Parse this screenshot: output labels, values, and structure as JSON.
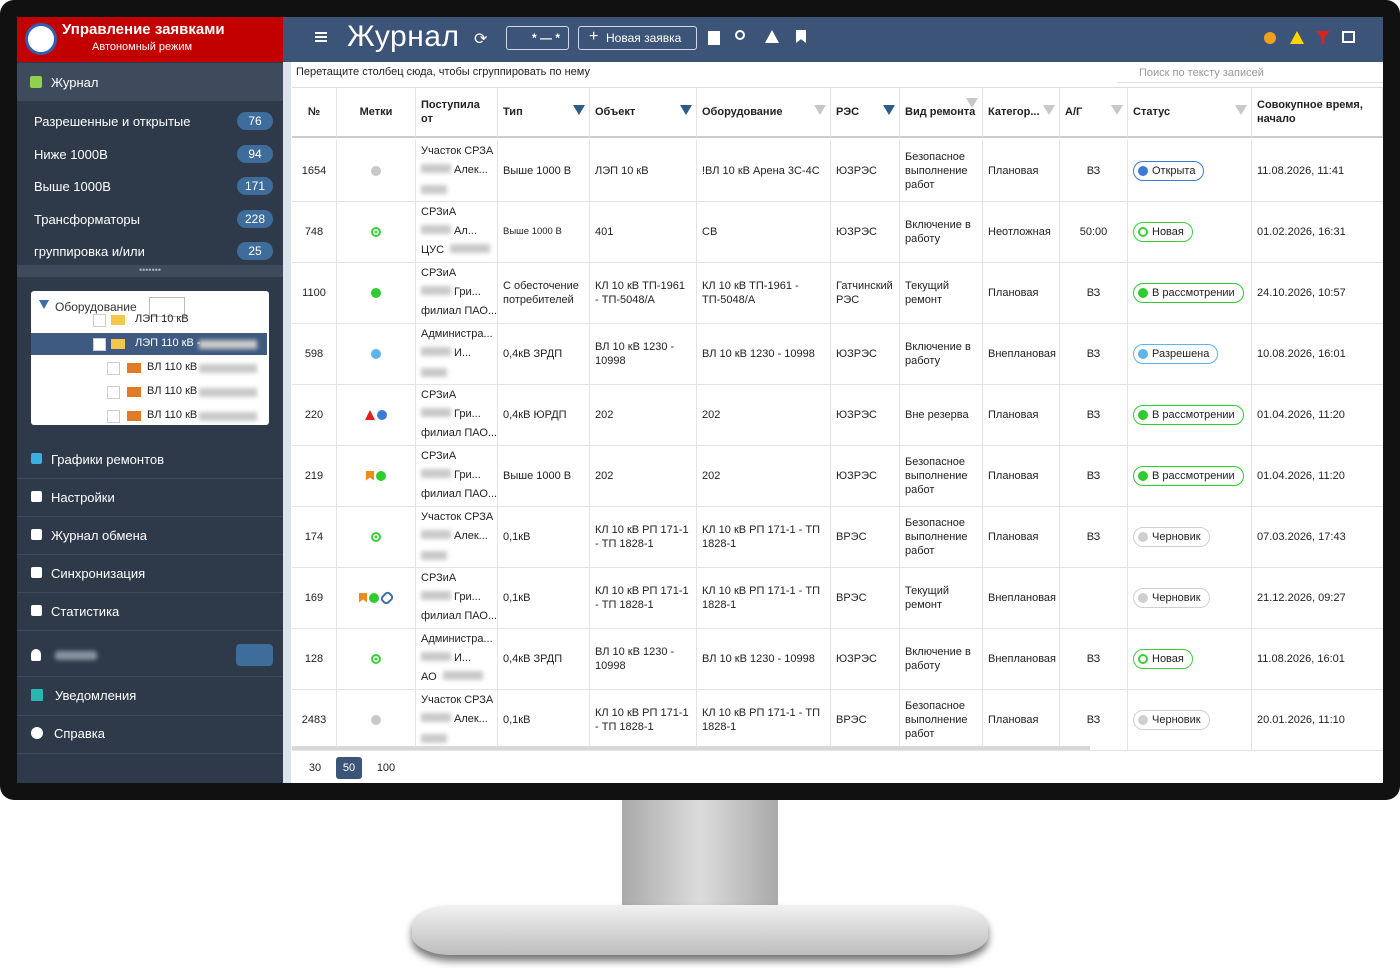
{
  "app": {
    "title": "Управление заявками",
    "subtitle": "Автономный режим"
  },
  "nav": {
    "journal": "Журнал",
    "filters": [
      {
        "label": "Разрешенные и открытые",
        "count": 76
      },
      {
        "label": "Ниже 1000В",
        "count": 94
      },
      {
        "label": "Выше 1000В",
        "count": 171
      },
      {
        "label": "Трансформаторы",
        "count": 228
      },
      {
        "label": "группировка и/или",
        "count": 25
      }
    ],
    "tree": {
      "title": "Оборудование",
      "items": [
        "ЛЭП 10 кВ",
        "ЛЭП 110 кВ -",
        "ВЛ 110 кВ",
        "ВЛ 110 кВ",
        "ВЛ 110 кВ"
      ]
    },
    "items": [
      "Графики ремонтов",
      "Настройки",
      "Журнал обмена",
      "Синхронизация",
      "Статистика"
    ],
    "bottom": [
      "Уведомления",
      "Справка"
    ]
  },
  "toolbar": {
    "title": "Журнал",
    "date_filter": "* — *",
    "new_button": "Новая заявка"
  },
  "group_hint": "Перетащите столбец сюда, чтобы сгруппировать по нему",
  "search_placeholder": "Поиск по тексту записей",
  "table": {
    "headers": [
      "№",
      "Метки",
      "Поступила от",
      "Тип",
      "Объект",
      "Оборудование",
      "РЭС",
      "Вид ремонта",
      "Категор...",
      "А/Г",
      "Статус",
      "Совокупное время, начало"
    ],
    "rows": [
      {
        "id": "1654",
        "marks": [
          {
            "shape": "dot",
            "color": "#c8c8c8"
          }
        ],
        "org": "Участок СРЗА",
        "person": "Алек...",
        "type": "Выше 1000 В",
        "object": "ЛЭП 10 кВ",
        "equipment": "!ВЛ 10 кВ Арена 3С-4С",
        "res": "ЮЗРЭС",
        "work": "Безопасное выполнение работ",
        "category": "Плановая",
        "ag": "ВЗ",
        "status": "Открыта",
        "status_color": "#3a7bd5",
        "status_icon": "fill",
        "time": "11.08.2026, 11:41"
      },
      {
        "id": "748",
        "marks": [
          {
            "shape": "ring",
            "color": "#3ccf3c"
          }
        ],
        "org": "СРЗиА",
        "person": "Ал...",
        "branch": "ЦУС",
        "type": "Выше 1000 В",
        "object": "401",
        "equipment": "СВ",
        "res": "ЮЗРЭС",
        "work": "Включение в работу",
        "category": "Неотложная",
        "ag": "50:00",
        "status": "Новая",
        "status_color": "#3ccf3c",
        "status_icon": "ring",
        "time": "01.02.2026, 16:31"
      },
      {
        "id": "1100",
        "marks": [
          {
            "shape": "dot",
            "color": "#2ecc2e"
          }
        ],
        "org": "СРЗиА",
        "person": "Гри...",
        "branch": "филиал ПАО...",
        "type": "С обесточение потребителей",
        "object": "КЛ 10 кВ ТП-1961 - ТП-5048/А",
        "equipment": "КЛ 10 кВ ТП-1961 - ТП-5048/А",
        "res": "Гатчинский РЭС",
        "work": "Текущий ремонт",
        "category": "Плановая",
        "ag": "ВЗ",
        "status": "В рассмотрении",
        "status_color": "#2ecc2e",
        "status_icon": "fill",
        "time": "24.10.2026, 10:57"
      },
      {
        "id": "598",
        "marks": [
          {
            "shape": "dot",
            "color": "#5bb5ea"
          }
        ],
        "org": "Администра...",
        "person": "И...",
        "type": "0,4кВ ЗРДП",
        "object": "ВЛ 10 кВ 1230 - 10998",
        "equipment": "ВЛ 10 кВ 1230 - 10998",
        "res": "ЮЗРЭС",
        "work": "Включение в работу",
        "category": "Внеплановая",
        "ag": "ВЗ",
        "status": "Разрешена",
        "status_color": "#5bb5ea",
        "status_icon": "fill",
        "time": "10.08.2026, 16:01"
      },
      {
        "id": "220",
        "marks": [
          {
            "shape": "triangle",
            "color": "#e02020"
          },
          {
            "shape": "dot",
            "color": "#3a7bd5"
          }
        ],
        "org": "СРЗиА",
        "person": "Гри...",
        "branch": "филиал ПАО...",
        "type": "0,4кВ ЮРДП",
        "object": "202",
        "equipment": "202",
        "res": "ЮЗРЭС",
        "work": "Вне резерва",
        "category": "Плановая",
        "ag": "ВЗ",
        "status": "В рассмотрении",
        "status_color": "#2ecc2e",
        "status_icon": "fill",
        "time": "01.04.2026, 11:20"
      },
      {
        "id": "219",
        "marks": [
          {
            "shape": "flag",
            "color": "#f08a1c"
          },
          {
            "shape": "dot",
            "color": "#2ecc2e"
          }
        ],
        "org": "СРЗиА",
        "person": "Гри...",
        "branch": "филиал ПАО...",
        "type": "Выше 1000 В",
        "object": "202",
        "equipment": "202",
        "res": "ЮЗРЭС",
        "work": "Безопасное выполнение работ",
        "category": "Плановая",
        "ag": "ВЗ",
        "status": "В рассмотрении",
        "status_color": "#2ecc2e",
        "status_icon": "fill",
        "time": "01.04.2026, 11:20"
      },
      {
        "id": "174",
        "marks": [
          {
            "shape": "ring",
            "color": "#3ccf3c"
          }
        ],
        "org": "Участок СРЗА",
        "person": "Алек...",
        "type": "0,1кВ",
        "object": "КЛ 10 кВ РП 171-1 - ТП 1828-1",
        "equipment": "КЛ 10 кВ РП 171-1 - ТП 1828-1",
        "res": "ВРЭС",
        "work": "Безопасное выполнение работ",
        "category": "Плановая",
        "ag": "ВЗ",
        "status": "Черновик",
        "status_color": "#d0d0d0",
        "status_icon": "fill",
        "time": "07.03.2026, 17:43"
      },
      {
        "id": "169",
        "marks": [
          {
            "shape": "flag",
            "color": "#f08a1c"
          },
          {
            "shape": "dot",
            "color": "#2ecc2e"
          },
          {
            "shape": "link",
            "color": "#3a6ea5"
          }
        ],
        "org": "СРЗиА",
        "person": "Гри...",
        "branch": "филиал ПАО...",
        "type": "0,1кВ",
        "object": "КЛ 10 кВ РП 171-1 - ТП 1828-1",
        "equipment": "КЛ 10 кВ РП 171-1 - ТП 1828-1",
        "res": "ВРЭС",
        "work": "Текущий ремонт",
        "category": "Внеплановая",
        "status": "Черновик",
        "status_color": "#d0d0d0",
        "status_icon": "fill",
        "time": "21.12.2026, 09:27"
      },
      {
        "id": "128",
        "marks": [
          {
            "shape": "ring",
            "color": "#3ccf3c"
          }
        ],
        "org": "Администра...",
        "person": "И...",
        "branch": "АО",
        "type": "0,4кВ ЗРДП",
        "object": "ВЛ 10 кВ 1230 - 10998",
        "equipment": "ВЛ 10 кВ 1230 - 10998",
        "res": "ЮЗРЭС",
        "work": "Включение в работу",
        "category": "Внеплановая",
        "ag": "ВЗ",
        "status": "Новая",
        "status_color": "#3ccf3c",
        "status_icon": "ring",
        "time": "11.08.2026, 16:01"
      },
      {
        "id": "2483",
        "marks": [
          {
            "shape": "dot",
            "color": "#c8c8c8"
          }
        ],
        "org": "Участок СРЗА",
        "person": "Алек...",
        "type": "0,1кВ",
        "object": "КЛ 10 кВ РП 171-1 - ТП 1828-1",
        "equipment": "КЛ 10 кВ РП 171-1 - ТП 1828-1",
        "res": "ВРЭС",
        "work": "Безопасное выполнение работ",
        "category": "Плановая",
        "ag": "ВЗ",
        "status": "Черновик",
        "status_color": "#d0d0d0",
        "status_icon": "fill",
        "time": "20.01.2026, 11:10"
      }
    ]
  },
  "pagination": {
    "sizes": [
      "30",
      "50",
      "100"
    ],
    "active": 1
  }
}
